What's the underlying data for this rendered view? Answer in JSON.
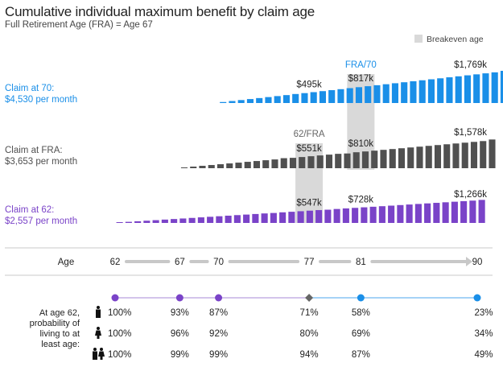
{
  "title": "Cumulative individual maximum benefit by claim age",
  "subtitle": "Full Retirement Age (FRA) = Age 67",
  "legend": {
    "breakeven_label": "Breakeven age",
    "swatch_color": "#d9d9d9"
  },
  "colors": {
    "claim70": "#1a8fe8",
    "claimFRA": "#505050",
    "claim62": "#7a43c8",
    "breakeven": "#d9d9d9",
    "gray_arrow": "#c8c8c8"
  },
  "chart_data": {
    "type": "bar",
    "x_label": "Age",
    "age_ticks": [
      "62",
      "67",
      "70",
      "77",
      "81",
      "90"
    ],
    "series": [
      {
        "key": "claim70",
        "label_line1": "Claim at 70:",
        "label_line2": "$4,530 per month",
        "start_age": 70,
        "values_k": [
          55,
          109,
          163,
          218,
          272,
          326,
          381,
          435,
          495,
          544,
          598,
          653,
          707,
          761,
          817,
          870,
          924,
          979,
          1033,
          1087,
          1141,
          1196,
          1250,
          1304,
          1358,
          1413,
          1467,
          1522,
          1576,
          1631,
          1685,
          1769
        ],
        "annotations": [
          {
            "age": 77,
            "text": "$495k"
          },
          {
            "age": 81,
            "text": "$817k"
          },
          {
            "age": 90,
            "text": "$1,769k"
          }
        ]
      },
      {
        "key": "claimFRA",
        "label_line1": "Claim at FRA:",
        "label_line2": "$3,653 per month",
        "start_age": 67,
        "values_k": [
          44,
          88,
          132,
          175,
          219,
          263,
          307,
          351,
          395,
          438,
          482,
          551,
          570,
          614,
          658,
          702,
          746,
          790,
          810,
          877,
          921,
          965,
          1009,
          1053,
          1096,
          1140,
          1184,
          1228,
          1272,
          1315,
          1359,
          1403,
          1447,
          1491,
          1578
        ],
        "annotations": [
          {
            "age": 77,
            "text": "$551k"
          },
          {
            "age": 81,
            "text": "$810k"
          },
          {
            "age": 90,
            "text": "$1,578k"
          }
        ]
      },
      {
        "key": "claim62",
        "label_line1": "Claim at 62:",
        "label_line2": "$2,557 per month",
        "start_age": 62,
        "values_k": [
          31,
          61,
          92,
          123,
          153,
          184,
          215,
          245,
          276,
          307,
          338,
          368,
          399,
          430,
          460,
          491,
          522,
          547,
          583,
          614,
          644,
          675,
          706,
          728,
          767,
          798,
          828,
          859,
          890,
          920,
          951,
          982,
          1012,
          1043,
          1074,
          1104,
          1135,
          1166,
          1197,
          1227,
          1266
        ],
        "annotations": [
          {
            "age": 77,
            "text": "$547k"
          },
          {
            "age": 81,
            "text": "$728k"
          },
          {
            "age": 90,
            "text": "$1,266k"
          }
        ]
      }
    ],
    "breakeven_bands": [
      {
        "age": 77,
        "label": "62/FRA"
      },
      {
        "age": 81,
        "label": "FRA/70"
      }
    ]
  },
  "survival": {
    "heading_lines": [
      "At age 62,",
      "probability of",
      "living to at",
      "least age:"
    ],
    "markers": [
      {
        "age": 62,
        "shape": "circle",
        "color": "#7a43c8"
      },
      {
        "age": 67,
        "shape": "circle",
        "color": "#7a43c8"
      },
      {
        "age": 70,
        "shape": "circle",
        "color": "#7a43c8"
      },
      {
        "age": 77,
        "shape": "diamond",
        "color": "#666666"
      },
      {
        "age": 81,
        "shape": "circle",
        "color": "#1a8fe8"
      },
      {
        "age": 90,
        "shape": "circle",
        "color": "#1a8fe8"
      }
    ],
    "rows": [
      {
        "icon": "man-icon",
        "values": [
          "100%",
          "93%",
          "87%",
          "71%",
          "58%",
          "23%"
        ]
      },
      {
        "icon": "woman-icon",
        "values": [
          "100%",
          "96%",
          "92%",
          "80%",
          "69%",
          "34%"
        ]
      },
      {
        "icon": "couple-icon",
        "values": [
          "100%",
          "99%",
          "99%",
          "94%",
          "87%",
          "49%"
        ]
      }
    ]
  }
}
